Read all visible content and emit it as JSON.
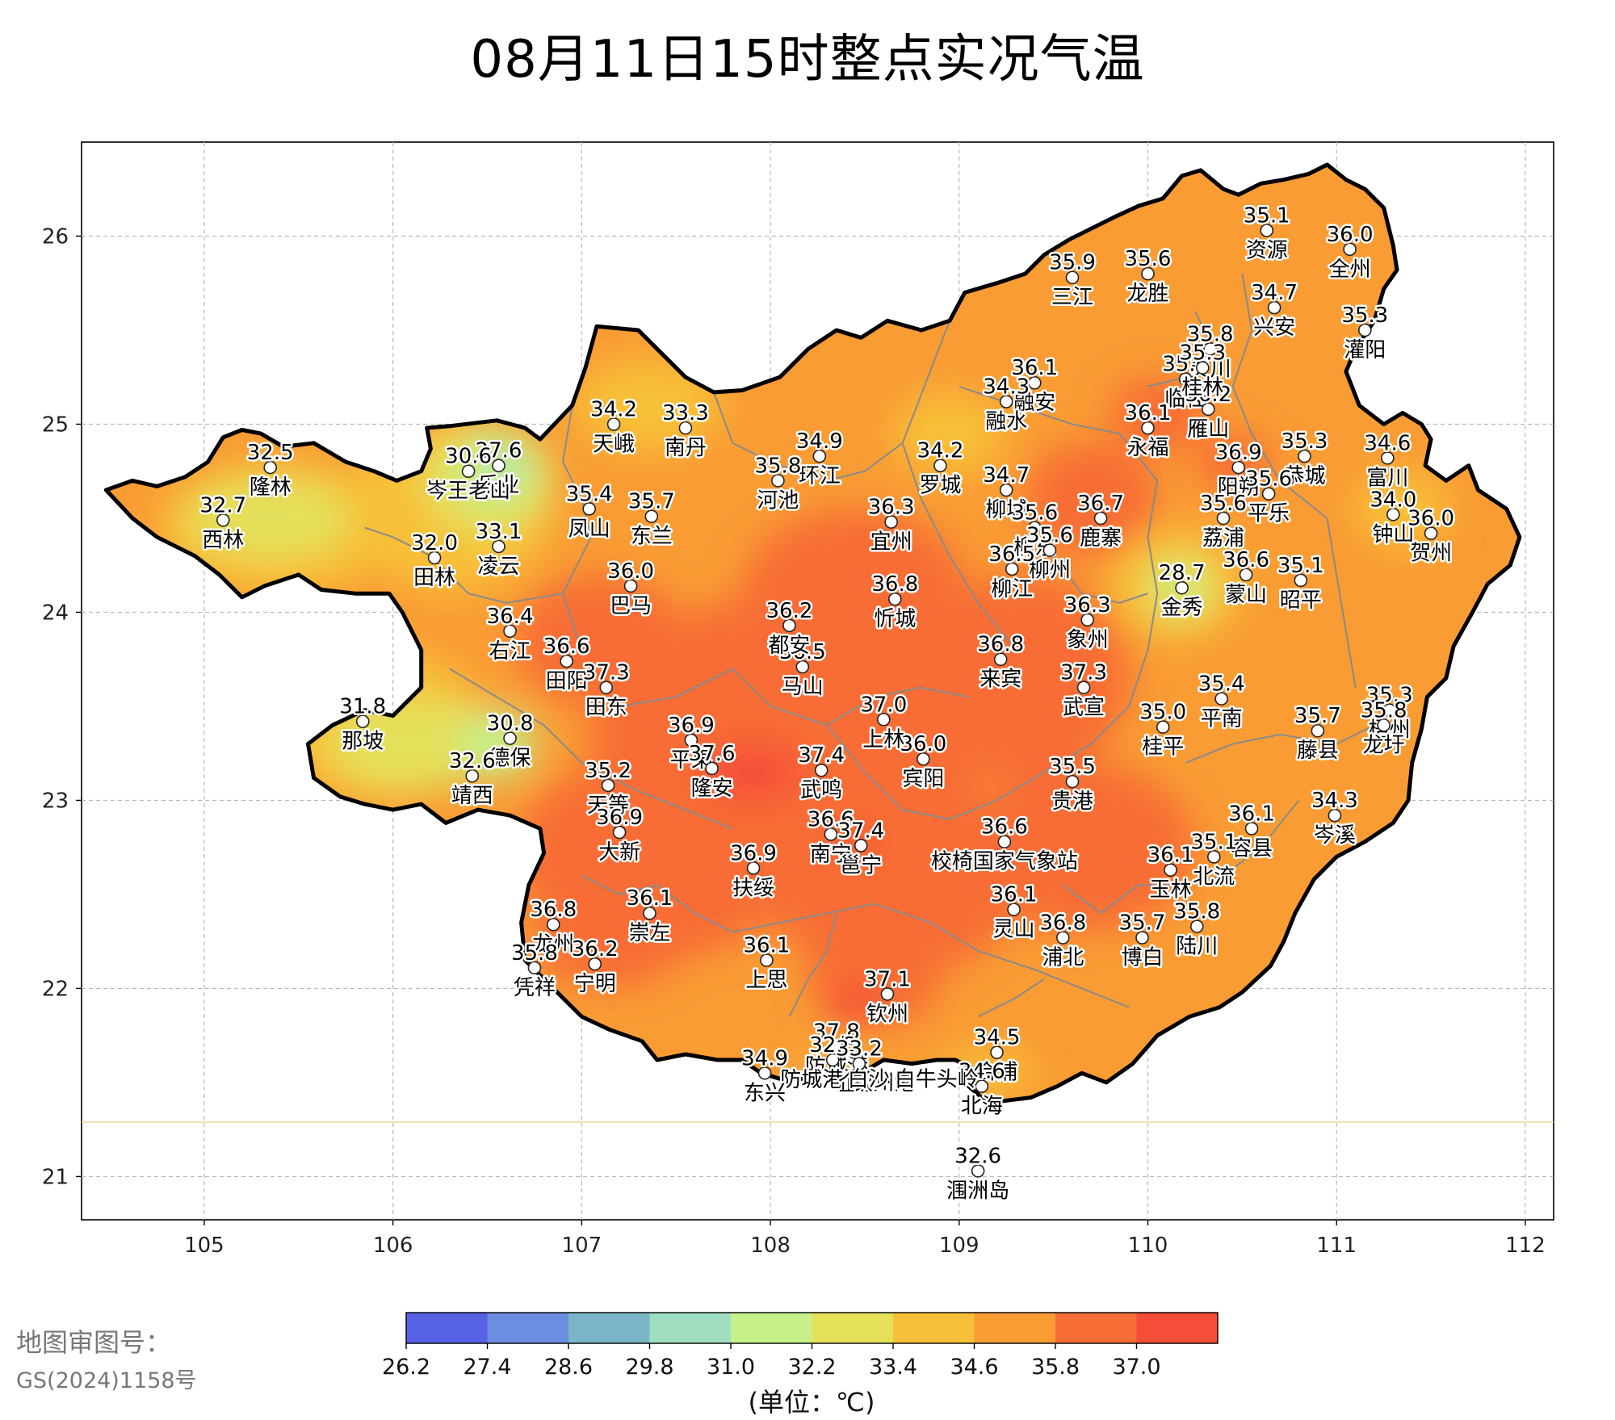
{
  "title": "08月11日15时整点实况气温",
  "axes": {
    "x_ticks": [
      105,
      106,
      107,
      108,
      109,
      110,
      111,
      112
    ],
    "y_ticks": [
      21,
      22,
      23,
      24,
      25,
      26
    ],
    "lon_range": [
      104.35,
      112.15
    ],
    "lat_range": [
      20.77,
      26.5
    ],
    "grid": true
  },
  "colorbar": {
    "ticks": [
      "26.2",
      "27.4",
      "28.6",
      "29.8",
      "31.0",
      "32.2",
      "33.4",
      "34.6",
      "35.8",
      "37.0"
    ],
    "colors": [
      "#5661e4",
      "#6b8ee0",
      "#7ab6c8",
      "#9fdec0",
      "#c6f08a",
      "#e4e05a",
      "#f8bf38",
      "#f99c34",
      "#f76d36",
      "#f54d37"
    ],
    "unit": "(单位：℃)"
  },
  "approval": {
    "label": "地图审图号：",
    "number": "GS(2024)1158号"
  },
  "colors": {
    "hot": "#f76d36",
    "warm": "#f99c34",
    "mild": "#f8bf38",
    "cool": "#e4e05a",
    "cooler": "#c6f08a",
    "coolest": "#9fdec0",
    "border": "#000000",
    "county_lines": "#8a8a8a"
  },
  "stations": [
    {
      "name": "全州",
      "value": "36.0",
      "lon": 111.07,
      "lat": 25.93
    },
    {
      "name": "资源",
      "value": "35.1",
      "lon": 110.63,
      "lat": 26.03
    },
    {
      "name": "三江",
      "value": "35.9",
      "lon": 109.6,
      "lat": 25.78
    },
    {
      "name": "龙胜",
      "value": "35.6",
      "lon": 110.0,
      "lat": 25.8
    },
    {
      "name": "兴安",
      "value": "34.7",
      "lon": 110.67,
      "lat": 25.62
    },
    {
      "name": "灌阳",
      "value": "35.3",
      "lon": 111.15,
      "lat": 25.5
    },
    {
      "name": "灵川",
      "value": "35.8",
      "lon": 110.33,
      "lat": 25.4
    },
    {
      "name": "临桂",
      "value": "35.6",
      "lon": 110.2,
      "lat": 25.24
    },
    {
      "name": "雁山",
      "value": "36.2",
      "lon": 110.32,
      "lat": 25.08
    },
    {
      "name": "桂林",
      "value": "35.3",
      "lon": 110.29,
      "lat": 25.3
    },
    {
      "name": "融安",
      "value": "36.1",
      "lon": 109.4,
      "lat": 25.22
    },
    {
      "name": "融水",
      "value": "34.3",
      "lon": 109.25,
      "lat": 25.12
    },
    {
      "name": "永福",
      "value": "36.1",
      "lon": 110.0,
      "lat": 24.98
    },
    {
      "name": "恭城",
      "value": "35.3",
      "lon": 110.83,
      "lat": 24.83
    },
    {
      "name": "富川",
      "value": "34.6",
      "lon": 111.27,
      "lat": 24.82
    },
    {
      "name": "阳朔",
      "value": "36.9",
      "lon": 110.48,
      "lat": 24.77
    },
    {
      "name": "平乐",
      "value": "35.6",
      "lon": 110.64,
      "lat": 24.63
    },
    {
      "name": "钟山",
      "value": "34.0",
      "lon": 111.3,
      "lat": 24.52
    },
    {
      "name": "贺州",
      "value": "36.0",
      "lon": 111.5,
      "lat": 24.42
    },
    {
      "name": "荔浦",
      "value": "35.6",
      "lon": 110.4,
      "lat": 24.5
    },
    {
      "name": "鹿寨",
      "value": "36.7",
      "lon": 109.75,
      "lat": 24.5
    },
    {
      "name": "柳城",
      "value": "34.7",
      "lon": 109.25,
      "lat": 24.65
    },
    {
      "name": "柳东",
      "value": "35.6",
      "lon": 109.4,
      "lat": 24.45
    },
    {
      "name": "柳州",
      "value": "35.6",
      "lon": 109.48,
      "lat": 24.33
    },
    {
      "name": "柳江",
      "value": "36.5",
      "lon": 109.28,
      "lat": 24.23
    },
    {
      "name": "金秀",
      "value": "28.7",
      "lon": 110.18,
      "lat": 24.13
    },
    {
      "name": "蒙山",
      "value": "36.6",
      "lon": 110.52,
      "lat": 24.2
    },
    {
      "name": "昭平",
      "value": "35.1",
      "lon": 110.81,
      "lat": 24.17
    },
    {
      "name": "象州",
      "value": "36.3",
      "lon": 109.68,
      "lat": 23.96
    },
    {
      "name": "来宾",
      "value": "36.8",
      "lon": 109.22,
      "lat": 23.75
    },
    {
      "name": "武宣",
      "value": "37.3",
      "lon": 109.66,
      "lat": 23.6
    },
    {
      "name": "平南",
      "value": "35.4",
      "lon": 110.39,
      "lat": 23.54
    },
    {
      "name": "藤县",
      "value": "35.7",
      "lon": 110.9,
      "lat": 23.37
    },
    {
      "name": "梧州",
      "value": "35.3",
      "lon": 111.28,
      "lat": 23.48
    },
    {
      "name": "龙圩",
      "value": "35.8",
      "lon": 111.25,
      "lat": 23.4
    },
    {
      "name": "桂平",
      "value": "35.0",
      "lon": 110.08,
      "lat": 23.39
    },
    {
      "name": "贵港",
      "value": "35.5",
      "lon": 109.6,
      "lat": 23.1
    },
    {
      "name": "岑溪",
      "value": "34.3",
      "lon": 110.99,
      "lat": 22.92
    },
    {
      "name": "容县",
      "value": "36.1",
      "lon": 110.55,
      "lat": 22.85
    },
    {
      "name": "玉林",
      "value": "36.1",
      "lon": 110.12,
      "lat": 22.63
    },
    {
      "name": "北流",
      "value": "35.1",
      "lon": 110.35,
      "lat": 22.7
    },
    {
      "name": "博白",
      "value": "35.7",
      "lon": 109.97,
      "lat": 22.27
    },
    {
      "name": "陆川",
      "value": "35.8",
      "lon": 110.26,
      "lat": 22.33
    },
    {
      "name": "灵山",
      "value": "36.1",
      "lon": 109.29,
      "lat": 22.42
    },
    {
      "name": "浦北",
      "value": "36.8",
      "lon": 109.55,
      "lat": 22.27
    },
    {
      "name": "校椅国家气象站",
      "value": "36.6",
      "lon": 109.24,
      "lat": 22.78
    },
    {
      "name": "宾阳",
      "value": "36.0",
      "lon": 108.81,
      "lat": 23.22
    },
    {
      "name": "上林",
      "value": "37.0",
      "lon": 108.6,
      "lat": 23.43
    },
    {
      "name": "武鸣",
      "value": "37.4",
      "lon": 108.27,
      "lat": 23.16
    },
    {
      "name": "马山",
      "value": "36.5",
      "lon": 108.17,
      "lat": 23.71
    },
    {
      "name": "都安",
      "value": "36.2",
      "lon": 108.1,
      "lat": 23.93
    },
    {
      "name": "忻城",
      "value": "36.8",
      "lon": 108.66,
      "lat": 24.07
    },
    {
      "name": "宜州",
      "value": "36.3",
      "lon": 108.64,
      "lat": 24.48
    },
    {
      "name": "罗城",
      "value": "34.2",
      "lon": 108.9,
      "lat": 24.78
    },
    {
      "name": "环江",
      "value": "34.9",
      "lon": 108.26,
      "lat": 24.83
    },
    {
      "name": "河池",
      "value": "35.8",
      "lon": 108.04,
      "lat": 24.7
    },
    {
      "name": "南丹",
      "value": "33.3",
      "lon": 107.55,
      "lat": 24.98
    },
    {
      "name": "天峨",
      "value": "34.2",
      "lon": 107.17,
      "lat": 25.0
    },
    {
      "name": "凤山",
      "value": "35.4",
      "lon": 107.04,
      "lat": 24.55
    },
    {
      "name": "东兰",
      "value": "35.7",
      "lon": 107.37,
      "lat": 24.51
    },
    {
      "name": "巴马",
      "value": "36.0",
      "lon": 107.26,
      "lat": 24.14
    },
    {
      "name": "凌云",
      "value": "33.1",
      "lon": 106.56,
      "lat": 24.35
    },
    {
      "name": "乐业",
      "value": "27.6",
      "lon": 106.56,
      "lat": 24.78
    },
    {
      "name": "岑王老山",
      "value": "30.6",
      "lon": 106.4,
      "lat": 24.75
    },
    {
      "name": "田林",
      "value": "32.0",
      "lon": 106.22,
      "lat": 24.29
    },
    {
      "name": "隆林",
      "value": "32.5",
      "lon": 105.35,
      "lat": 24.77
    },
    {
      "name": "西林",
      "value": "32.7",
      "lon": 105.1,
      "lat": 24.49
    },
    {
      "name": "右江",
      "value": "36.4",
      "lon": 106.62,
      "lat": 23.9
    },
    {
      "name": "田阳",
      "value": "36.6",
      "lon": 106.92,
      "lat": 23.74
    },
    {
      "name": "田东",
      "value": "37.3",
      "lon": 107.13,
      "lat": 23.6
    },
    {
      "name": "那坡",
      "value": "31.8",
      "lon": 105.84,
      "lat": 23.42
    },
    {
      "name": "德保",
      "value": "30.8",
      "lon": 106.62,
      "lat": 23.33
    },
    {
      "name": "靖西",
      "value": "32.6",
      "lon": 106.42,
      "lat": 23.13
    },
    {
      "name": "天等",
      "value": "35.2",
      "lon": 107.14,
      "lat": 23.08
    },
    {
      "name": "大新",
      "value": "36.9",
      "lon": 107.2,
      "lat": 22.83
    },
    {
      "name": "平果",
      "value": "36.9",
      "lon": 107.58,
      "lat": 23.32
    },
    {
      "name": "隆安",
      "value": "37.6",
      "lon": 107.69,
      "lat": 23.17
    },
    {
      "name": "南宁",
      "value": "36.6",
      "lon": 108.32,
      "lat": 22.82
    },
    {
      "name": "邕宁",
      "value": "37.4",
      "lon": 108.48,
      "lat": 22.76
    },
    {
      "name": "扶绥",
      "value": "36.9",
      "lon": 107.91,
      "lat": 22.64
    },
    {
      "name": "崇左",
      "value": "36.1",
      "lon": 107.36,
      "lat": 22.4
    },
    {
      "name": "龙州",
      "value": "36.8",
      "lon": 106.85,
      "lat": 22.34
    },
    {
      "name": "宁明",
      "value": "36.2",
      "lon": 107.07,
      "lat": 22.13
    },
    {
      "name": "凭祥",
      "value": "35.8",
      "lon": 106.75,
      "lat": 22.11
    },
    {
      "name": "上思",
      "value": "36.1",
      "lon": 107.98,
      "lat": 22.15
    },
    {
      "name": "钦州",
      "value": "37.1",
      "lon": 108.62,
      "lat": 21.97
    },
    {
      "name": "防城港",
      "value": "37.8",
      "lon": 108.35,
      "lat": 21.69
    },
    {
      "name": "防城港港口",
      "value": "32.8",
      "lon": 108.33,
      "lat": 21.62
    },
    {
      "name": "东兴",
      "value": "34.9",
      "lon": 107.97,
      "lat": 21.55
    },
    {
      "name": "企沙",
      "value": "33.2",
      "lon": 108.47,
      "lat": 21.6
    },
    {
      "name": "合浦",
      "value": "34.5",
      "lon": 109.2,
      "lat": 21.66
    },
    {
      "name": "北海",
      "value": "34.6",
      "lon": 109.12,
      "lat": 21.48
    },
    {
      "name": "涠洲岛",
      "value": "32.6",
      "lon": 109.1,
      "lat": 21.03
    }
  ],
  "extra_labels": [
    "钦州港",
    "白沙",
    "白牛头岭"
  ]
}
